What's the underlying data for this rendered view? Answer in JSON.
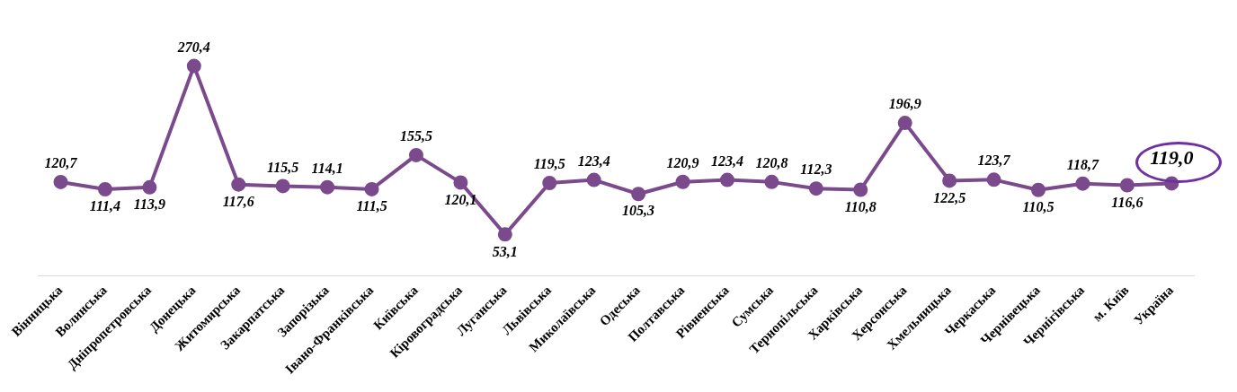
{
  "chart_data": {
    "type": "line",
    "categories": [
      "Вінницька",
      "Волинська",
      "Дніпропетровська",
      "Донецька",
      "Житомирська",
      "Закарпатська",
      "Запорізька",
      "Івано-Франківська",
      "Київська",
      "Кіровоградська",
      "Луганська",
      "Львівська",
      "Миколаївська",
      "Одеська",
      "Полтавська",
      "Рівненська",
      "Сумська",
      "Тернопільська",
      "Харківська",
      "Херсонська",
      "Хмельницька",
      "Черкаська",
      "Чернівецька",
      "Чернігівська",
      "м. Київ",
      "Україна"
    ],
    "series": [
      {
        "color": "#7b4a8c",
        "values": [
          120.7,
          111.4,
          113.9,
          270.4,
          117.6,
          115.5,
          114.1,
          111.5,
          155.5,
          120.1,
          53.1,
          119.5,
          123.4,
          105.3,
          120.9,
          123.4,
          120.8,
          112.3,
          110.8,
          196.9,
          122.5,
          123.7,
          110.5,
          118.7,
          116.6,
          119.0
        ],
        "value_labels": [
          "120,7",
          "111,4",
          "113,9",
          "270,4",
          "117,6",
          "115,5",
          "114,1",
          "111,5",
          "155,5",
          "120,1",
          "53,1",
          "119,5",
          "123,4",
          "105,3",
          "120,9",
          "123,4",
          "120,8",
          "112,3",
          "110,8",
          "196,9",
          "122,5",
          "123,7",
          "110,5",
          "118,7",
          "116,6",
          "119,0"
        ]
      }
    ],
    "marker": "circle",
    "line_style": "solid",
    "grid": false,
    "legend": false,
    "tick_labels": "x"
  }
}
